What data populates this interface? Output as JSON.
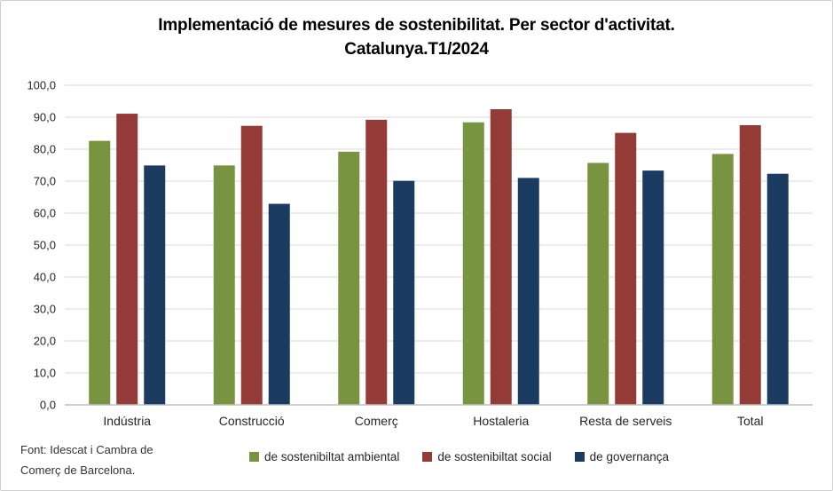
{
  "title": {
    "line1": "Implementació de mesures de sostenibilitat. Per sector d'activitat.",
    "line2": "Catalunya.T1/2024"
  },
  "footer": {
    "line1": "Font: Idescat i Cambra de",
    "line2": "Comerç de Barcelona."
  },
  "colors": {
    "gridline": "#d9d9d9",
    "axis_line": "#bfbfbf",
    "axis_text": "#262626",
    "series_green": "#789440",
    "series_red": "#943a37",
    "series_blue": "#1c3b60"
  },
  "chart_data": {
    "type": "bar",
    "title": "Implementació de mesures de sostenibilitat. Per sector d'activitat. Catalunya.T1/2024",
    "categories": [
      "Indústria",
      "Construcció",
      "Comerç",
      "Hostaleria",
      "Resta de serveis",
      "Total"
    ],
    "series": [
      {
        "name": "de sostenibiltat ambiental",
        "color": "#789440",
        "values": [
          82.6,
          74.9,
          79.2,
          88.4,
          75.7,
          78.5
        ]
      },
      {
        "name": "de sostenibiltat social",
        "color": "#943a37",
        "values": [
          91.1,
          87.3,
          89.2,
          92.5,
          85.1,
          87.5
        ]
      },
      {
        "name": "de governança",
        "color": "#1c3b60",
        "values": [
          74.9,
          62.9,
          70.1,
          71.0,
          73.3,
          72.3
        ]
      }
    ],
    "xlabel": "",
    "ylabel": "",
    "ylim": [
      0,
      100
    ],
    "ytick_step": 10,
    "ytick_labels": [
      "0,0",
      "10,0",
      "20,0",
      "30,0",
      "40,0",
      "50,0",
      "60,0",
      "70,0",
      "80,0",
      "90,0",
      "100,0"
    ],
    "grid": true,
    "legend_position": "bottom"
  }
}
